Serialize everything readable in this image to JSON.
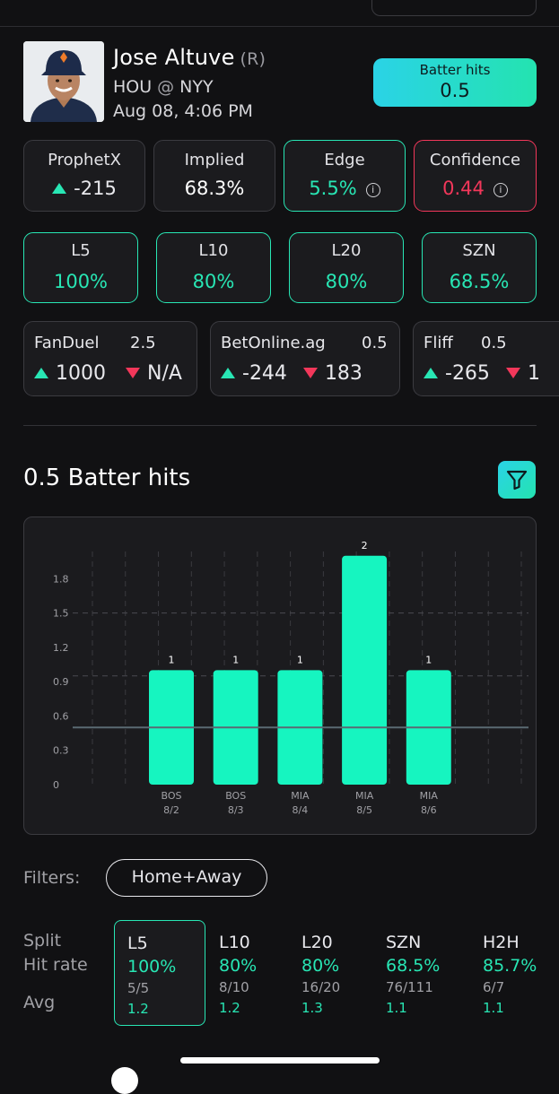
{
  "player": {
    "name": "Jose Altuve",
    "hand": "(R)",
    "team": "HOU",
    "at": "@",
    "opponent": "NYY",
    "date": "Aug 08, 4:06 PM"
  },
  "market": {
    "label": "Batter hits",
    "line": "0.5"
  },
  "stats": [
    {
      "title": "ProphetX",
      "value": "-215",
      "arrow": "up"
    },
    {
      "title": "Implied",
      "value": "68.3%"
    },
    {
      "title": "Edge",
      "value": "5.5%",
      "info": "i"
    },
    {
      "title": "Confidence",
      "value": "0.44",
      "info": "i"
    }
  ],
  "history": [
    {
      "label": "L5",
      "value": "100%"
    },
    {
      "label": "L10",
      "value": "80%"
    },
    {
      "label": "L20",
      "value": "80%"
    },
    {
      "label": "SZN",
      "value": "68.5%"
    }
  ],
  "books": [
    {
      "name": "FanDuel",
      "line": "2.5",
      "over": "1000",
      "under": "N/A"
    },
    {
      "name": "BetOnline.ag",
      "line": "0.5",
      "over": "-244",
      "under": "183"
    },
    {
      "name": "Fliff",
      "line": "0.5",
      "over": "-265",
      "under": "1"
    }
  ],
  "section": {
    "title": "0.5 Batter hits"
  },
  "chart_data": {
    "type": "bar",
    "categories": [
      "BOS 8/2",
      "BOS 8/3",
      "MIA 8/4",
      "MIA 8/5",
      "MIA 8/6"
    ],
    "opponents": [
      "BOS",
      "BOS",
      "MIA",
      "MIA",
      "MIA"
    ],
    "dates": [
      "8/2",
      "8/3",
      "8/4",
      "8/5",
      "8/6"
    ],
    "values": [
      1,
      1,
      1,
      2,
      1
    ],
    "yticks": [
      "0",
      "0.3",
      "0.6",
      "0.9",
      "1.2",
      "1.5",
      "1.8"
    ],
    "ylim": [
      0,
      2.1
    ],
    "line_value": 0.5,
    "bar_color": "#16f5c0",
    "title": "",
    "xlabel": "",
    "ylabel": ""
  },
  "filters": {
    "label": "Filters:",
    "home_away": "Home+Away"
  },
  "splits": {
    "row_labels": {
      "split": "Split",
      "hit_rate": "Hit rate",
      "avg": "Avg"
    },
    "columns": [
      {
        "name": "L5",
        "rate": "100%",
        "fraction": "5/5",
        "avg": "1.2"
      },
      {
        "name": "L10",
        "rate": "80%",
        "fraction": "8/10",
        "avg": "1.2"
      },
      {
        "name": "L20",
        "rate": "80%",
        "fraction": "16/20",
        "avg": "1.3"
      },
      {
        "name": "SZN",
        "rate": "68.5%",
        "fraction": "76/111",
        "avg": "1.1"
      },
      {
        "name": "H2H",
        "rate": "85.7%",
        "fraction": "6/7",
        "avg": "1.1"
      }
    ]
  },
  "colors": {
    "accent_green": "#28e6b4",
    "negative_red": "#f2375a",
    "background": "#111113",
    "card": "#1b1b1e"
  },
  "icons": {
    "filter": "filter-funnel-icon",
    "info": "info-icon",
    "up": "up-triangle-icon",
    "down": "down-triangle-icon"
  }
}
